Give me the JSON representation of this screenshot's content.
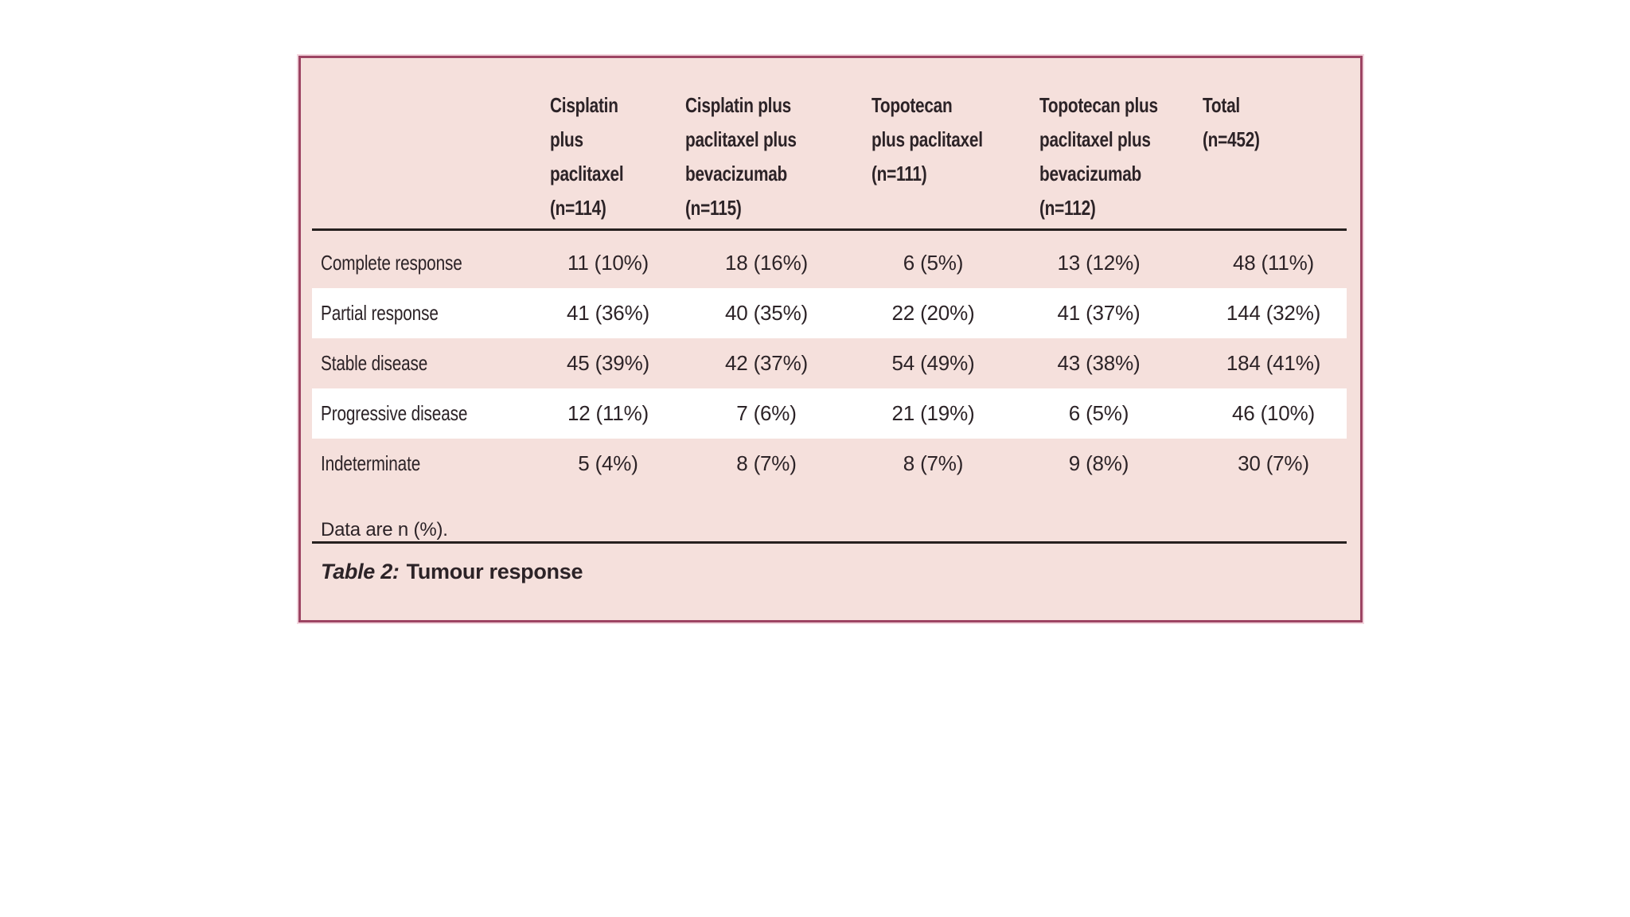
{
  "page": {
    "background": "#ffffff"
  },
  "panel": {
    "background": "#f5e0dc",
    "border_color": "#9d4463",
    "stripe_color": "#ffffff",
    "rule_color": "#26201f",
    "text_color": "#2c2327"
  },
  "table": {
    "header": {
      "col1": "",
      "col2": "Cisplatin\nplus paclitaxel\n(n=114)",
      "col3": "Cisplatin plus\npaclitaxel plus\nbevacizumab\n(n=115)",
      "col4": "Topotecan\nplus paclitaxel\n(n=111)",
      "col5": "Topotecan plus\npaclitaxel plus\nbevacizumab\n(n=112)",
      "col6": "Total\n(n=452)"
    },
    "rows": [
      {
        "label": "Complete response",
        "striped": false,
        "values": [
          "11 (10%)",
          "18 (16%)",
          "6 (5%)",
          "13 (12%)",
          "48 (11%)"
        ]
      },
      {
        "label": "Partial response",
        "striped": true,
        "values": [
          "41 (36%)",
          "40 (35%)",
          "22 (20%)",
          "41 (37%)",
          "144 (32%)"
        ]
      },
      {
        "label": "Stable disease",
        "striped": false,
        "values": [
          "45 (39%)",
          "42 (37%)",
          "54 (49%)",
          "43 (38%)",
          "184 (41%)"
        ]
      },
      {
        "label": "Progressive disease",
        "striped": true,
        "values": [
          "12 (11%)",
          "7 (6%)",
          "21 (19%)",
          "6 (5%)",
          "46 (10%)"
        ]
      },
      {
        "label": "Indeterminate",
        "striped": false,
        "values": [
          "5 (4%)",
          "8 (7%)",
          "8 (7%)",
          "9 (8%)",
          "30 (7%)"
        ]
      }
    ],
    "footnote": "Data are n (%).",
    "caption_label": "Table 2:",
    "caption_title": "Tumour response"
  },
  "chart_data": {
    "type": "table",
    "title": "Table 2: Tumour response",
    "columns": [
      "",
      "Cisplatin plus paclitaxel (n=114)",
      "Cisplatin plus paclitaxel plus bevacizumab (n=115)",
      "Topotecan plus paclitaxel (n=111)",
      "Topotecan plus paclitaxel plus bevacizumab (n=112)",
      "Total (n=452)"
    ],
    "rows": [
      [
        "Complete response",
        "11 (10%)",
        "18 (16%)",
        "6 (5%)",
        "13 (12%)",
        "48 (11%)"
      ],
      [
        "Partial response",
        "41 (36%)",
        "40 (35%)",
        "22 (20%)",
        "41 (37%)",
        "144 (32%)"
      ],
      [
        "Stable disease",
        "45 (39%)",
        "42 (37%)",
        "54 (49%)",
        "43 (38%)",
        "184 (41%)"
      ],
      [
        "Progressive disease",
        "12 (11%)",
        "7 (6%)",
        "21 (19%)",
        "6 (5%)",
        "46 (10%)"
      ],
      [
        "Indeterminate",
        "5 (4%)",
        "8 (7%)",
        "8 (7%)",
        "9 (8%)",
        "30 (7%)"
      ]
    ],
    "footnote": "Data are n (%)."
  }
}
